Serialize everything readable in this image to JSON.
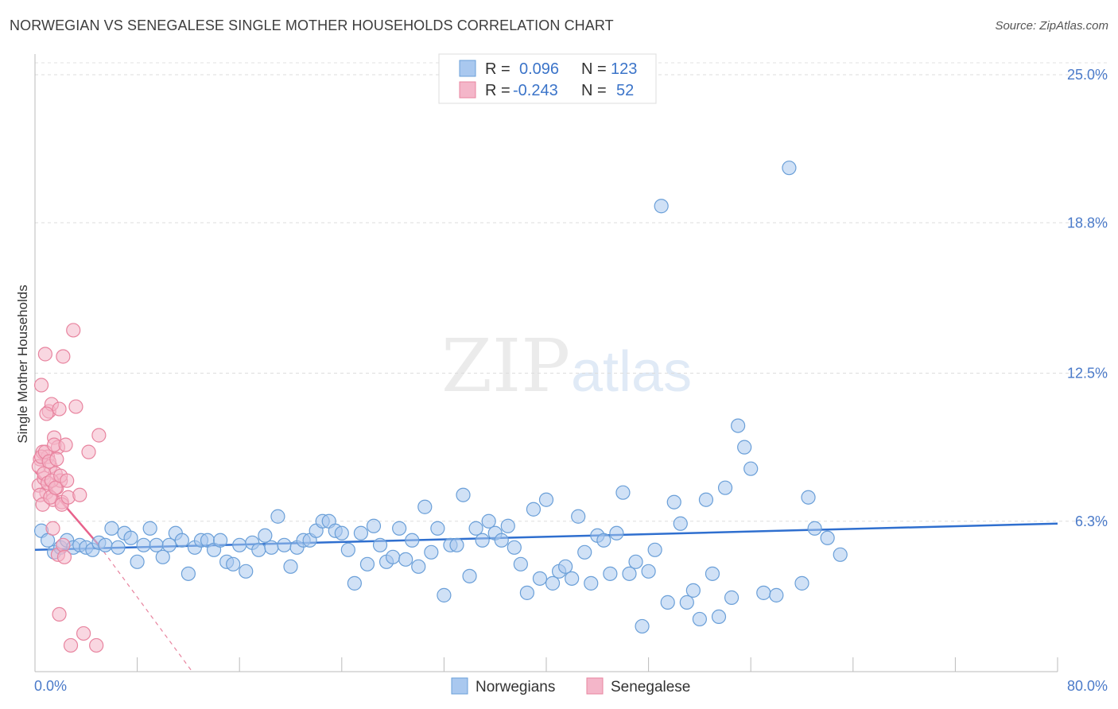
{
  "title": "NORWEGIAN VS SENEGALESE SINGLE MOTHER HOUSEHOLDS CORRELATION CHART",
  "source": "Source: ZipAtlas.com",
  "watermark": {
    "zip": "ZIP",
    "atlas": "atlas"
  },
  "colors": {
    "blue_fill": "#a9c8ef",
    "blue_stroke": "#6a9fd8",
    "blue_line": "#2f6fcf",
    "pink_fill": "#f4b6c9",
    "pink_stroke": "#e8849f",
    "pink_line": "#e8628b",
    "grid": "#dddddd",
    "tick_text": "#4a7ac9"
  },
  "legend": {
    "rows": [
      {
        "r_label": "R =",
        "r_value": "0.096",
        "n_label": "N =",
        "n_value": "123"
      },
      {
        "r_label": "R =",
        "r_value": "-0.243",
        "n_label": "N =",
        "n_value": "52"
      }
    ]
  },
  "chart_data": {
    "type": "scatter",
    "title": "NORWEGIAN VS SENEGALESE SINGLE MOTHER HOUSEHOLDS CORRELATION CHART",
    "ylabel": "Single Mother Households",
    "xlim": [
      0,
      80
    ],
    "ylim": [
      0,
      25.8
    ],
    "x_tick_labels": [
      "0.0%",
      "80.0%"
    ],
    "y_ticks": [
      6.3,
      12.5,
      18.8,
      25.0
    ],
    "y_tick_labels": [
      "6.3%",
      "12.5%",
      "18.8%",
      "25.0%"
    ],
    "grid": "horizontal dashed",
    "legend_position": "top-center",
    "series": [
      {
        "name": "Norwegians",
        "color": "#a9c8ef",
        "trend": {
          "x": [
            0,
            80
          ],
          "y": [
            5.1,
            6.2
          ]
        },
        "points": [
          [
            0.5,
            5.9
          ],
          [
            1,
            5.5
          ],
          [
            1.5,
            5.0
          ],
          [
            2,
            5.2
          ],
          [
            2.5,
            5.5
          ],
          [
            3,
            5.2
          ],
          [
            3.5,
            5.3
          ],
          [
            4,
            5.2
          ],
          [
            4.5,
            5.1
          ],
          [
            5,
            5.4
          ],
          [
            5.5,
            5.3
          ],
          [
            6,
            6.0
          ],
          [
            6.5,
            5.2
          ],
          [
            7,
            5.8
          ],
          [
            7.5,
            5.6
          ],
          [
            8,
            4.6
          ],
          [
            8.5,
            5.3
          ],
          [
            9,
            6.0
          ],
          [
            9.5,
            5.3
          ],
          [
            10,
            4.8
          ],
          [
            10.5,
            5.3
          ],
          [
            11,
            5.8
          ],
          [
            11.5,
            5.5
          ],
          [
            12,
            4.1
          ],
          [
            12.5,
            5.2
          ],
          [
            13,
            5.5
          ],
          [
            13.5,
            5.5
          ],
          [
            14,
            5.1
          ],
          [
            14.5,
            5.5
          ],
          [
            15,
            4.6
          ],
          [
            15.5,
            4.5
          ],
          [
            16,
            5.3
          ],
          [
            16.5,
            4.2
          ],
          [
            17,
            5.4
          ],
          [
            17.5,
            5.1
          ],
          [
            18,
            5.7
          ],
          [
            18.5,
            5.2
          ],
          [
            19,
            6.5
          ],
          [
            19.5,
            5.3
          ],
          [
            20,
            4.4
          ],
          [
            20.5,
            5.2
          ],
          [
            21,
            5.5
          ],
          [
            21.5,
            5.5
          ],
          [
            22,
            5.9
          ],
          [
            22.5,
            6.3
          ],
          [
            23,
            6.3
          ],
          [
            23.5,
            5.9
          ],
          [
            24,
            5.8
          ],
          [
            24.5,
            5.1
          ],
          [
            25,
            3.7
          ],
          [
            25.5,
            5.8
          ],
          [
            26,
            4.5
          ],
          [
            26.5,
            6.1
          ],
          [
            27,
            5.3
          ],
          [
            27.5,
            4.6
          ],
          [
            28,
            4.8
          ],
          [
            28.5,
            6.0
          ],
          [
            29,
            4.7
          ],
          [
            29.5,
            5.5
          ],
          [
            30,
            4.4
          ],
          [
            30.5,
            6.9
          ],
          [
            31,
            5.0
          ],
          [
            31.5,
            6.0
          ],
          [
            32,
            3.2
          ],
          [
            32.5,
            5.3
          ],
          [
            33,
            5.3
          ],
          [
            33.5,
            7.4
          ],
          [
            34,
            4.0
          ],
          [
            34.5,
            6.0
          ],
          [
            35,
            5.5
          ],
          [
            35.5,
            6.3
          ],
          [
            36,
            5.8
          ],
          [
            36.5,
            5.5
          ],
          [
            37,
            6.1
          ],
          [
            37.5,
            5.2
          ],
          [
            38,
            4.5
          ],
          [
            38.5,
            3.3
          ],
          [
            39,
            6.8
          ],
          [
            39.5,
            3.9
          ],
          [
            40,
            7.2
          ],
          [
            40.5,
            3.7
          ],
          [
            41,
            4.2
          ],
          [
            41.5,
            4.4
          ],
          [
            42,
            3.9
          ],
          [
            42.5,
            6.5
          ],
          [
            43,
            5.0
          ],
          [
            43.5,
            3.7
          ],
          [
            44,
            5.7
          ],
          [
            44.5,
            5.5
          ],
          [
            45,
            4.1
          ],
          [
            45.5,
            5.8
          ],
          [
            46,
            7.5
          ],
          [
            46.5,
            4.1
          ],
          [
            47,
            4.6
          ],
          [
            47.5,
            1.9
          ],
          [
            48,
            4.2
          ],
          [
            48.5,
            5.1
          ],
          [
            49,
            19.5
          ],
          [
            49.5,
            2.9
          ],
          [
            50,
            7.1
          ],
          [
            50.5,
            6.2
          ],
          [
            51,
            2.9
          ],
          [
            51.5,
            3.4
          ],
          [
            52,
            2.2
          ],
          [
            52.5,
            7.2
          ],
          [
            53,
            4.1
          ],
          [
            53.5,
            2.3
          ],
          [
            54,
            7.7
          ],
          [
            54.5,
            3.1
          ],
          [
            55,
            10.3
          ],
          [
            55.5,
            9.4
          ],
          [
            56,
            8.5
          ],
          [
            57,
            3.3
          ],
          [
            58,
            3.2
          ],
          [
            59,
            21.1
          ],
          [
            60,
            3.7
          ],
          [
            60.5,
            7.3
          ],
          [
            61,
            6.0
          ],
          [
            62,
            5.6
          ],
          [
            63,
            4.9
          ]
        ]
      },
      {
        "name": "Senegalese",
        "color": "#f4b6c9",
        "trend": {
          "x": [
            0,
            5
          ],
          "y": [
            8.4,
            5.3
          ]
        },
        "trend_extension": {
          "x": [
            5,
            12.3
          ],
          "y": [
            5.3,
            0
          ]
        },
        "points": [
          [
            0.3,
            7.8
          ],
          [
            0.4,
            8.9
          ],
          [
            0.5,
            12.0
          ],
          [
            0.6,
            9.2
          ],
          [
            0.7,
            8.1
          ],
          [
            0.8,
            13.3
          ],
          [
            0.9,
            7.5
          ],
          [
            1.0,
            9.0
          ],
          [
            1.1,
            10.9
          ],
          [
            1.2,
            8.6
          ],
          [
            1.3,
            11.2
          ],
          [
            1.4,
            7.2
          ],
          [
            1.5,
            9.8
          ],
          [
            1.6,
            8.3
          ],
          [
            1.7,
            7.7
          ],
          [
            1.8,
            9.4
          ],
          [
            1.9,
            11.0
          ],
          [
            2.0,
            8.0
          ],
          [
            2.1,
            7.1
          ],
          [
            2.2,
            13.2
          ],
          [
            0.3,
            8.6
          ],
          [
            0.4,
            7.4
          ],
          [
            0.5,
            9.0
          ],
          [
            0.6,
            7.0
          ],
          [
            0.7,
            8.3
          ],
          [
            0.8,
            9.2
          ],
          [
            0.9,
            10.8
          ],
          [
            1.0,
            7.9
          ],
          [
            1.1,
            8.8
          ],
          [
            1.2,
            7.3
          ],
          [
            1.3,
            8.0
          ],
          [
            1.4,
            6.0
          ],
          [
            1.5,
            9.5
          ],
          [
            1.6,
            7.7
          ],
          [
            1.7,
            8.9
          ],
          [
            1.8,
            4.9
          ],
          [
            1.9,
            2.4
          ],
          [
            2.0,
            8.2
          ],
          [
            2.1,
            7.0
          ],
          [
            2.2,
            5.3
          ],
          [
            2.3,
            4.8
          ],
          [
            2.4,
            9.5
          ],
          [
            2.5,
            8.0
          ],
          [
            2.6,
            7.3
          ],
          [
            2.8,
            1.1
          ],
          [
            3.0,
            14.3
          ],
          [
            3.2,
            11.1
          ],
          [
            3.5,
            7.4
          ],
          [
            3.8,
            1.6
          ],
          [
            4.2,
            9.2
          ],
          [
            4.8,
            1.1
          ],
          [
            5.0,
            9.9
          ]
        ]
      }
    ]
  },
  "axis": {
    "ylabel": "Single Mother Households",
    "x_left_label": "0.0%",
    "x_right_label": "80.0%"
  },
  "bottom_legend": [
    {
      "label": "Norwegians"
    },
    {
      "label": "Senegalese"
    }
  ]
}
